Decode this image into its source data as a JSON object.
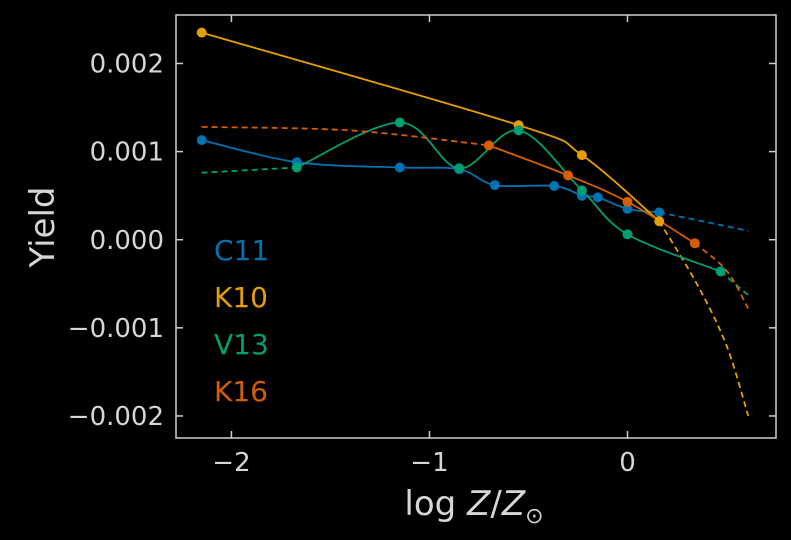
{
  "chart_data": {
    "type": "line",
    "xlabel": "log Z/Z⊙",
    "ylabel": "Yield",
    "xlim": [
      -2.28,
      0.75
    ],
    "ylim": [
      -0.00225,
      0.00255
    ],
    "x_ticks": [
      {
        "value": -2,
        "label": "−2"
      },
      {
        "value": -1,
        "label": "−1"
      },
      {
        "value": 0,
        "label": "0"
      }
    ],
    "y_ticks": [
      {
        "value": 0.002,
        "label": "0.002"
      },
      {
        "value": 0.001,
        "label": "0.001"
      },
      {
        "value": 0.0,
        "label": "0.000"
      },
      {
        "value": -0.001,
        "label": "−0.001"
      },
      {
        "value": -0.002,
        "label": "−0.002"
      }
    ],
    "grid": false,
    "legend_position": "left",
    "series": [
      {
        "name": "C11",
        "color": "#0072b2",
        "points": [
          [
            -2.15,
            0.00113
          ],
          [
            -1.67,
            0.00088
          ],
          [
            -1.15,
            0.00082
          ],
          [
            -0.85,
            0.0008
          ],
          [
            -0.67,
            0.00062
          ],
          [
            -0.37,
            0.00061
          ],
          [
            -0.23,
            0.0005
          ],
          [
            -0.15,
            0.00048
          ],
          [
            0.0,
            0.00035
          ],
          [
            0.16,
            0.00031
          ]
        ],
        "extrapolation": [
          [
            0.16,
            0.00031
          ],
          [
            0.4,
            0.0002
          ],
          [
            0.61,
            0.0001
          ]
        ]
      },
      {
        "name": "K10",
        "color": "#e69f00",
        "points": [
          [
            -2.15,
            0.00235
          ],
          [
            -0.55,
            0.0013
          ],
          [
            -0.23,
            0.00096
          ],
          [
            0.16,
            0.00021
          ]
        ],
        "extrapolation": [
          [
            0.16,
            0.00021
          ],
          [
            0.35,
            -0.0005
          ],
          [
            0.5,
            -0.0012
          ],
          [
            0.61,
            -0.002
          ]
        ]
      },
      {
        "name": "V13",
        "color": "#009e73",
        "points": [
          [
            -1.67,
            0.00082
          ],
          [
            -1.15,
            0.00133
          ],
          [
            -0.85,
            0.00081
          ],
          [
            -0.55,
            0.00124
          ],
          [
            -0.23,
            0.00056
          ],
          [
            0.0,
            6e-05
          ],
          [
            0.47,
            -0.00036
          ]
        ],
        "extrapolation_low": [
          [
            -2.15,
            0.00076
          ],
          [
            -1.67,
            0.00082
          ]
        ],
        "extrapolation": [
          [
            0.47,
            -0.00036
          ],
          [
            0.61,
            -0.00063
          ]
        ]
      },
      {
        "name": "K16",
        "color": "#d55e00",
        "points": [
          [
            -0.7,
            0.00107
          ],
          [
            -0.3,
            0.00073
          ],
          [
            0.0,
            0.00043
          ],
          [
            0.34,
            -4e-05
          ]
        ],
        "extrapolation_low": [
          [
            -2.15,
            0.00128
          ],
          [
            -1.4,
            0.00124
          ],
          [
            -0.7,
            0.00107
          ]
        ],
        "extrapolation": [
          [
            0.34,
            -4e-05
          ],
          [
            0.5,
            -0.00035
          ],
          [
            0.61,
            -0.00078
          ]
        ]
      }
    ]
  }
}
